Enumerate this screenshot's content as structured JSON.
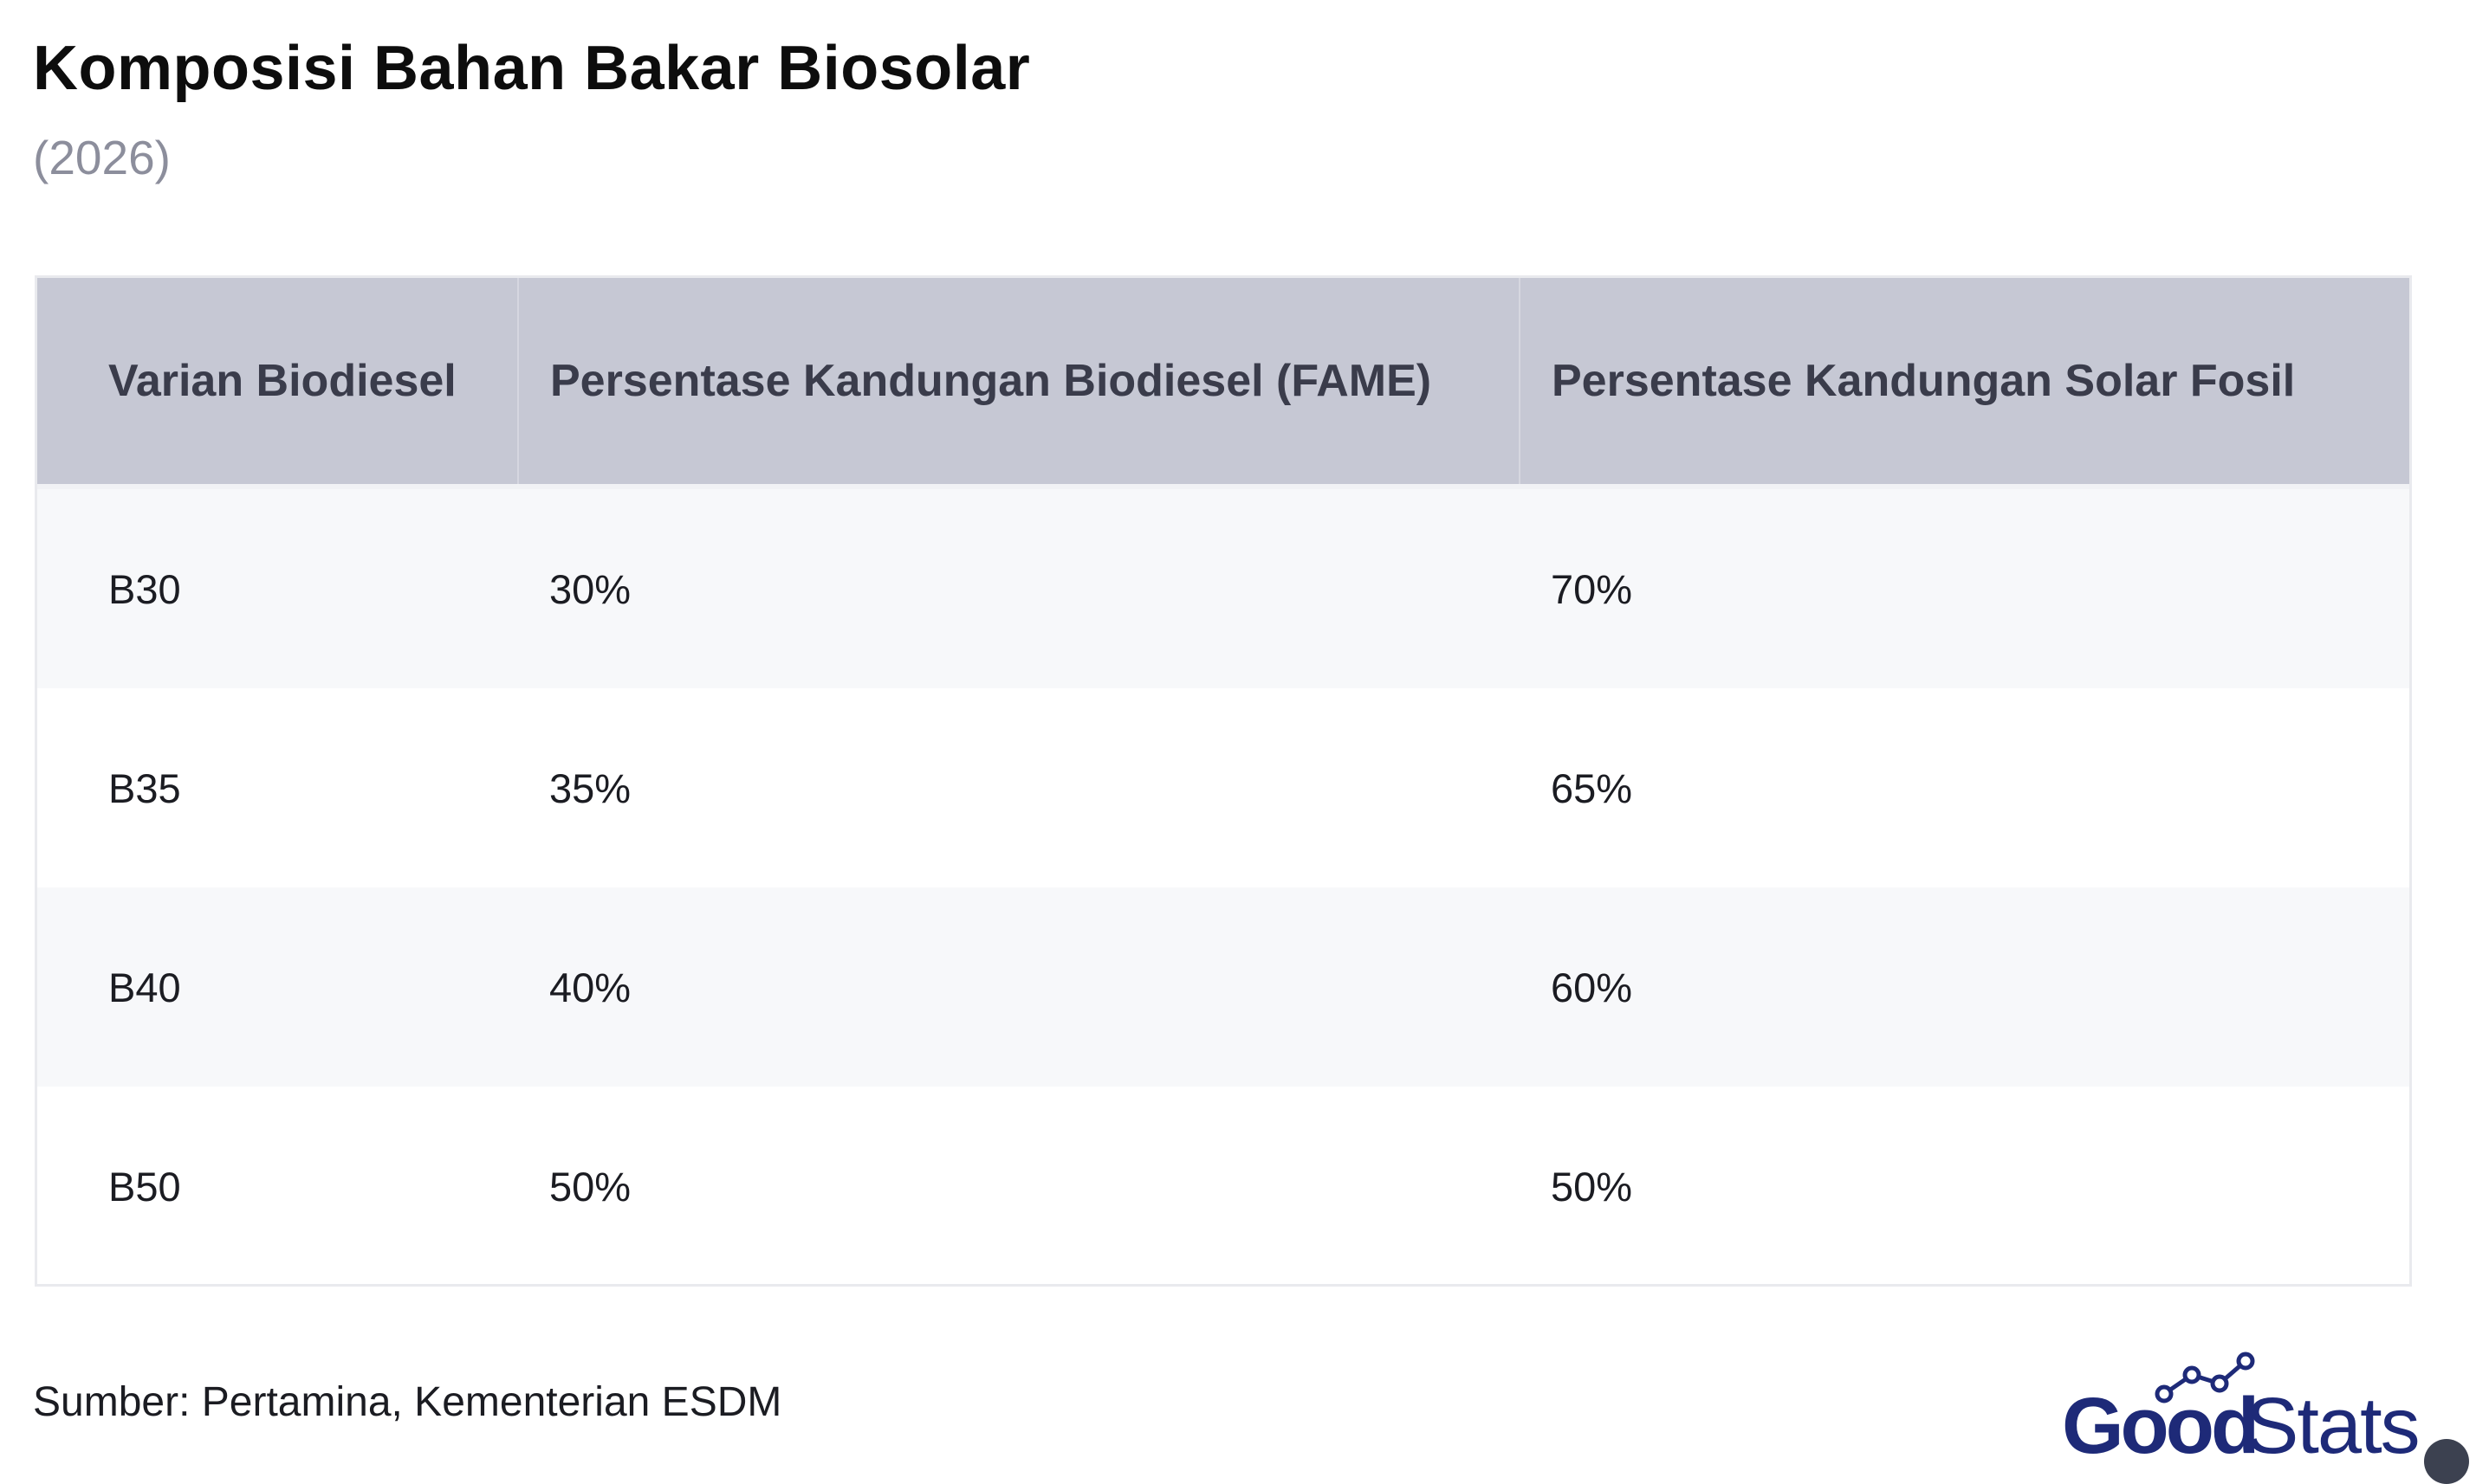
{
  "chart_data": {
    "type": "table",
    "title": "Komposisi Bahan Bakar Biosolar",
    "subtitle": "(2026)",
    "columns": [
      "Varian Biodiesel",
      "Persentase Kandungan Biodiesel (FAME)",
      "Persentase Kandungan Solar Fosil"
    ],
    "rows": [
      [
        "B30",
        "30%",
        "70%"
      ],
      [
        "B35",
        "35%",
        "65%"
      ],
      [
        "B40",
        "40%",
        "60%"
      ],
      [
        "B50",
        "50%",
        "50%"
      ]
    ],
    "source": "Sumber: Pertamina, Kementerian ESDM"
  },
  "logo": {
    "text_good": "Good",
    "text_stats": "Stats",
    "color_good": "#1e2a78",
    "color_stats": "#1e2a78"
  },
  "icons": {
    "corner": "screenshot-icon"
  }
}
